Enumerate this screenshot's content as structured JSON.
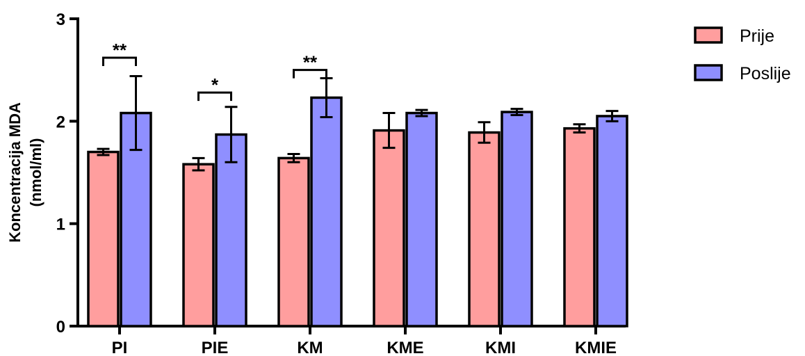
{
  "chart_data": {
    "type": "bar",
    "ylabel": [
      "Koncentracija MDA",
      "(nmol/ml)"
    ],
    "ylim": [
      0,
      3
    ],
    "yticks": [
      0,
      1,
      2,
      3
    ],
    "categories": [
      "PI",
      "PIE",
      "KM",
      "KME",
      "KMI",
      "KMIE"
    ],
    "series": [
      {
        "name": "Prije",
        "color": "#ff9e9e",
        "values": [
          1.7,
          1.58,
          1.64,
          1.91,
          1.89,
          1.93
        ],
        "errors": [
          0.03,
          0.06,
          0.04,
          0.17,
          0.1,
          0.04
        ]
      },
      {
        "name": "Poslije",
        "color": "#8f8fff",
        "values": [
          2.08,
          1.87,
          2.23,
          2.08,
          2.09,
          2.05
        ],
        "errors": [
          0.36,
          0.27,
          0.19,
          0.03,
          0.03,
          0.05
        ]
      }
    ],
    "significance": [
      {
        "category": "PI",
        "label": "**",
        "y": 2.62
      },
      {
        "category": "PIE",
        "label": "*",
        "y": 2.28
      },
      {
        "category": "KM",
        "label": "**",
        "y": 2.5
      }
    ],
    "legend_position": "top-right",
    "grid": false
  }
}
